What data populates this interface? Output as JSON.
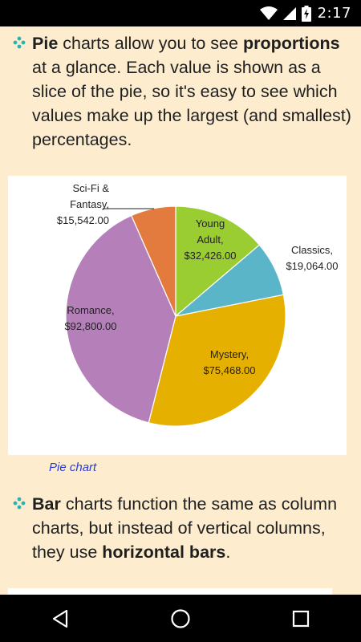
{
  "status_bar": {
    "time": "2:17",
    "icons": [
      "wifi-icon",
      "signal-icon",
      "battery-charging-icon"
    ]
  },
  "paragraphs": {
    "pie": {
      "strong1": "Pie",
      "t1": " charts allow you to see ",
      "strong2": "proportions",
      "t2": " at a glance. Each value is shown as a slice of the pie, so it's easy to see which values make up the largest (and smallest) percentages."
    },
    "bar": {
      "strong1": "Bar",
      "t1": " charts function the same as column charts, but instead of vertical columns, they use ",
      "strong2": "horizontal bars",
      "t2": "."
    }
  },
  "figure_caption": "Pie chart",
  "colors": {
    "page_background": "#fdeccd",
    "bullet": "#2bb3b1",
    "caption_link": "#2a3ad6"
  },
  "chart_data": {
    "type": "pie",
    "slices": [
      {
        "label_lines": [
          "Young",
          "Adult,",
          "$32,426.00"
        ],
        "value": 32426,
        "color": "#9acd32"
      },
      {
        "label_lines": [
          "Classics,",
          "$19,064.00"
        ],
        "value": 19064,
        "color": "#5bb5c8"
      },
      {
        "label_lines": [
          "Mystery,",
          "$75,468.00"
        ],
        "value": 75468,
        "color": "#e6b000"
      },
      {
        "label_lines": [
          "Romance,",
          "$92,800.00"
        ],
        "value": 92800,
        "color": "#b57fba"
      },
      {
        "label_lines": [
          "Sci-Fi &",
          "Fantasy,",
          "$15,542.00"
        ],
        "value": 15542,
        "color": "#e37a3e"
      }
    ]
  },
  "nav_bar": {
    "buttons": [
      "back-icon",
      "home-icon",
      "recents-icon"
    ]
  }
}
